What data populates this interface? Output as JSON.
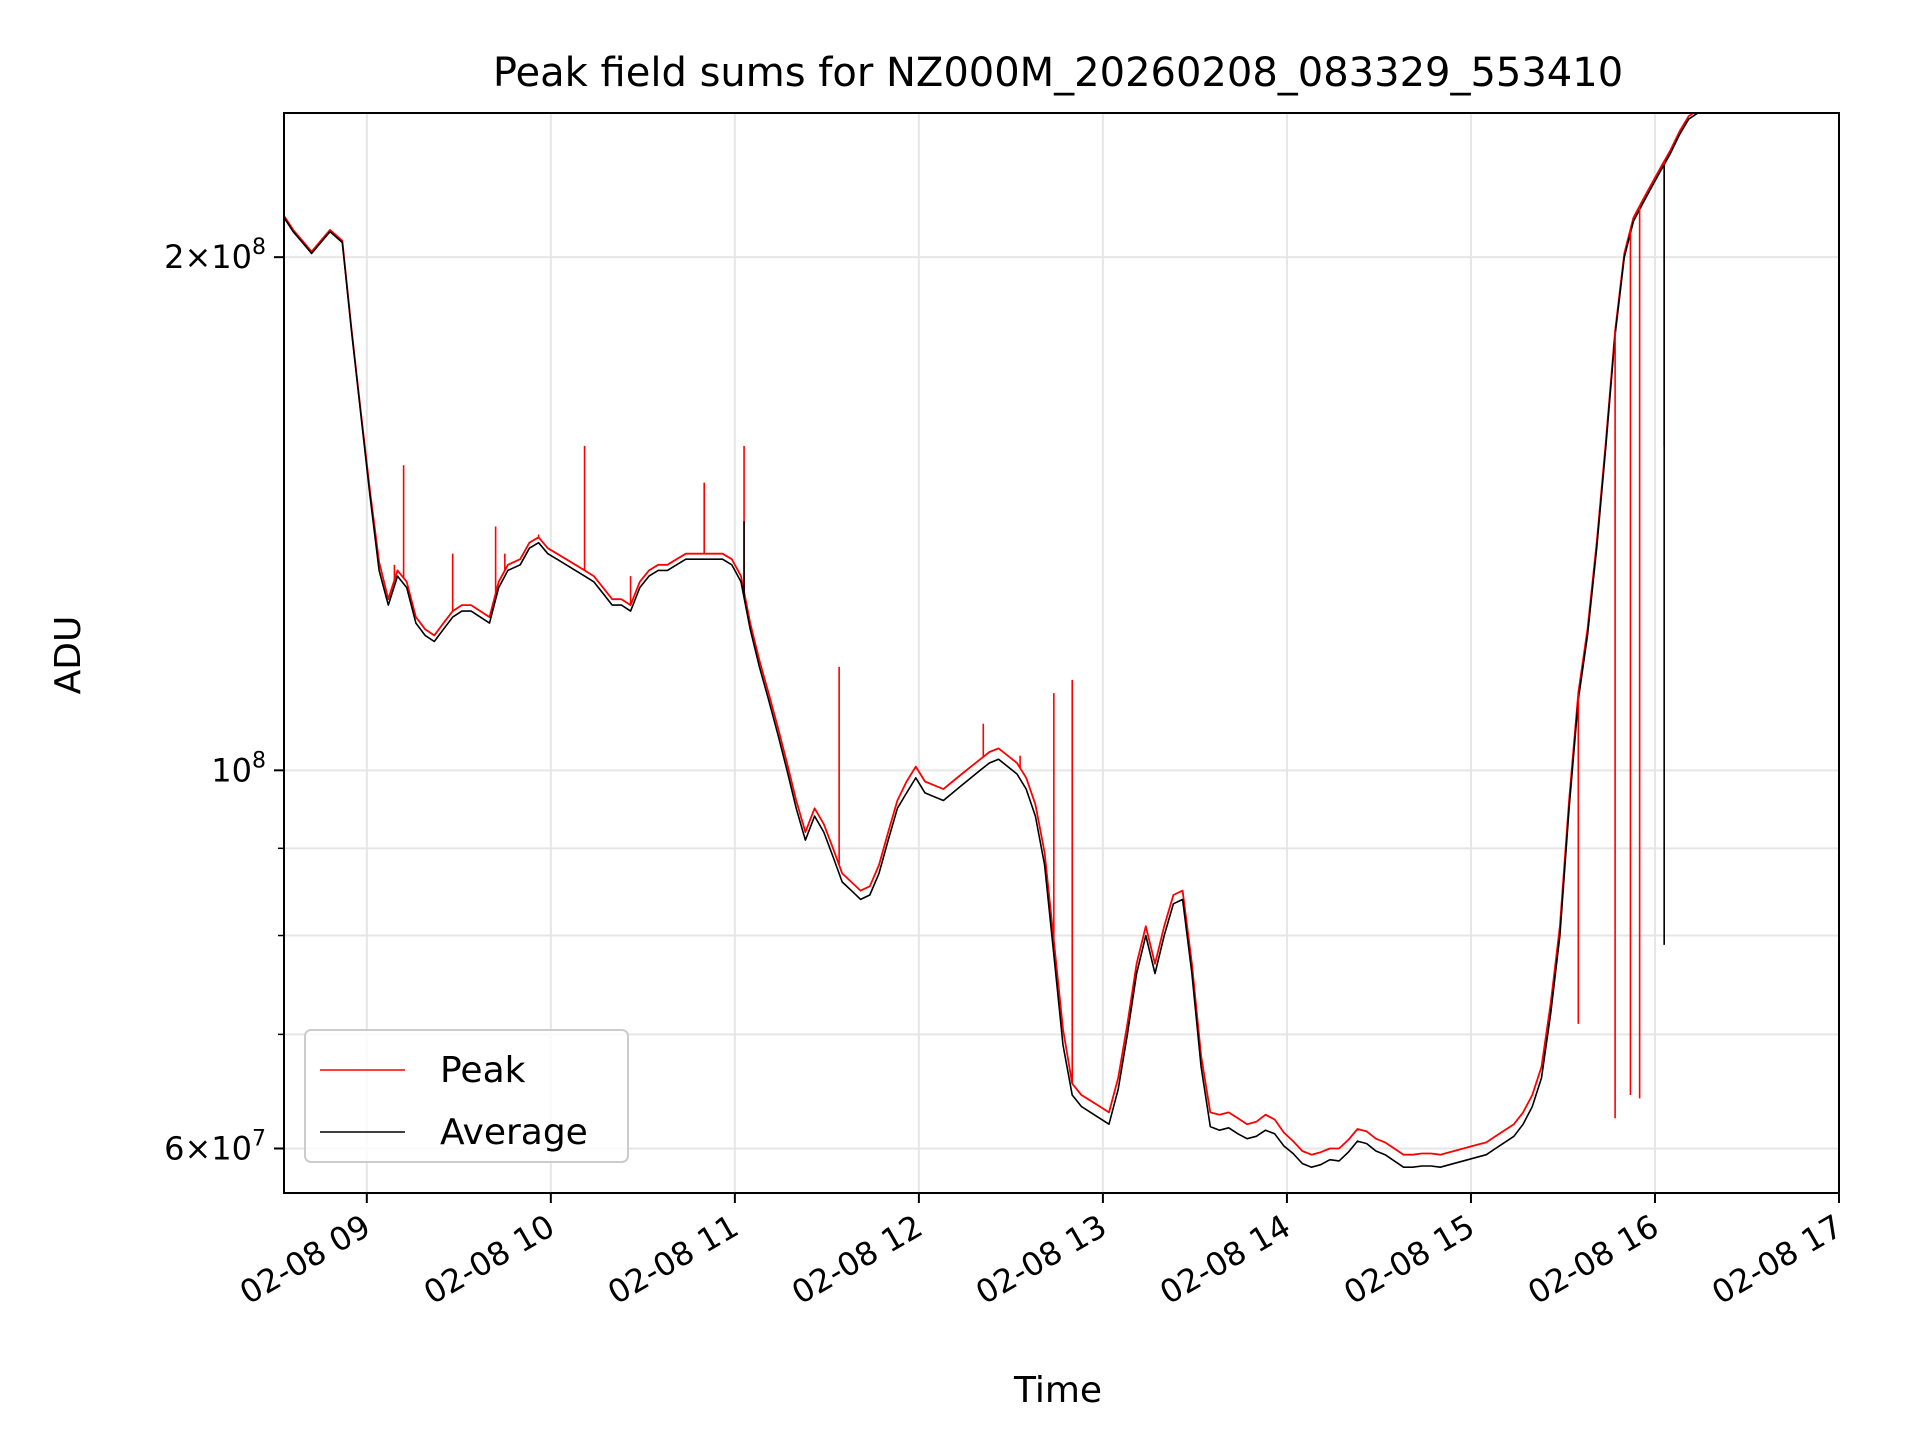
{
  "chart_data": {
    "type": "line",
    "title": "Peak field sums for NZ000M_20260208_083329_553410",
    "xlabel": "Time",
    "ylabel": "ADU",
    "y_scale": "log",
    "xlim": [
      "2026-02-08 08:33",
      "2026-02-08 17:00"
    ],
    "ylim": [
      56500000,
      243000000
    ],
    "x_ticks": [
      "02-08 09",
      "02-08 10",
      "02-08 11",
      "02-08 12",
      "02-08 13",
      "02-08 14",
      "02-08 15",
      "02-08 16",
      "02-08 17"
    ],
    "y_ticks": [
      {
        "value": 200000000,
        "mant": "2",
        "base": "10",
        "exp": "8"
      },
      {
        "value": 100000000,
        "mant": "",
        "base": "10",
        "exp": "8"
      },
      {
        "value": 60000000,
        "mant": "6",
        "base": "10",
        "exp": "7"
      }
    ],
    "y_minor_ticks": [
      70000000,
      80000000,
      90000000
    ],
    "grid": true,
    "legend_position": "lower-left",
    "series": [
      {
        "name": "Peak",
        "color": "#ff0000"
      },
      {
        "name": "Average",
        "color": "#000000"
      }
    ],
    "x": [
      "08:33",
      "08:36",
      "08:39",
      "08:42",
      "08:45",
      "08:48",
      "08:52",
      "08:55",
      "08:58",
      "09:01",
      "09:04",
      "09:07",
      "09:10",
      "09:13",
      "09:16",
      "09:19",
      "09:22",
      "09:25",
      "09:28",
      "09:31",
      "09:34",
      "09:37",
      "09:40",
      "09:43",
      "09:46",
      "09:50",
      "09:53",
      "09:56",
      "09:59",
      "10:02",
      "10:05",
      "10:08",
      "10:11",
      "10:14",
      "10:17",
      "10:20",
      "10:23",
      "10:26",
      "10:29",
      "10:32",
      "10:35",
      "10:38",
      "10:41",
      "10:44",
      "10:47",
      "10:50",
      "10:53",
      "10:56",
      "10:59",
      "11:02",
      "11:05",
      "11:08",
      "11:11",
      "11:14",
      "11:17",
      "11:20",
      "11:23",
      "11:26",
      "11:29",
      "11:32",
      "11:35",
      "11:38",
      "11:41",
      "11:44",
      "11:47",
      "11:50",
      "11:53",
      "11:56",
      "11:59",
      "12:02",
      "12:05",
      "12:08",
      "12:11",
      "12:14",
      "12:17",
      "12:20",
      "12:23",
      "12:26",
      "12:29",
      "12:32",
      "12:35",
      "12:38",
      "12:41",
      "12:44",
      "12:47",
      "12:50",
      "12:53",
      "12:56",
      "12:59",
      "13:02",
      "13:05",
      "13:08",
      "13:11",
      "13:14",
      "13:17",
      "13:20",
      "13:23",
      "13:26",
      "13:29",
      "13:32",
      "13:35",
      "13:38",
      "13:41",
      "13:44",
      "13:47",
      "13:50",
      "13:53",
      "13:56",
      "13:59",
      "14:02",
      "14:05",
      "14:08",
      "14:11",
      "14:14",
      "14:17",
      "14:20",
      "14:23",
      "14:26",
      "14:29",
      "14:32",
      "14:35",
      "14:38",
      "14:41",
      "14:44",
      "14:47",
      "14:50",
      "14:53",
      "14:56",
      "14:59",
      "15:02",
      "15:05",
      "15:08",
      "15:11",
      "15:14",
      "15:17",
      "15:20",
      "15:23",
      "15:26",
      "15:29",
      "15:32",
      "15:35",
      "15:38",
      "15:41",
      "15:44",
      "15:47",
      "15:50",
      "15:53",
      "15:56",
      "15:59",
      "16:02",
      "16:05",
      "16:08",
      "16:11",
      "16:14",
      "16:17",
      "16:20",
      "16:23",
      "16:26",
      "16:29",
      "16:32",
      "16:35",
      "16:38",
      "16:41",
      "16:44",
      "16:47",
      "16:50",
      "16:53",
      "16:56",
      "16:59",
      "17:00"
    ],
    "average": [
      211000000,
      207000000,
      204000000,
      201000000,
      204000000,
      207000000,
      204000000,
      181000000,
      162000000,
      145000000,
      131000000,
      125000000,
      130000000,
      128000000,
      122000000,
      120000000,
      119000000,
      121000000,
      123000000,
      124000000,
      124000000,
      123000000,
      122000000,
      128000000,
      131000000,
      132000000,
      135000000,
      136000000,
      134000000,
      133000000,
      132000000,
      131000000,
      130000000,
      129000000,
      127000000,
      125000000,
      125000000,
      124000000,
      128000000,
      130000000,
      131000000,
      131000000,
      132000000,
      133000000,
      133000000,
      133000000,
      133000000,
      133000000,
      132000000,
      129000000,
      121000000,
      115000000,
      110000000,
      105000000,
      100000000,
      95000000,
      91000000,
      94000000,
      92000000,
      89000000,
      86000000,
      85000000,
      84000000,
      84500000,
      87000000,
      91000000,
      95000000,
      97000000,
      99000000,
      97000000,
      96500000,
      96000000,
      97000000,
      98000000,
      99000000,
      100000000,
      101000000,
      101500000,
      100500000,
      99500000,
      97500000,
      94000000,
      88000000,
      78000000,
      69000000,
      64500000,
      63500000,
      63000000,
      62500000,
      62000000,
      65000000,
      70000000,
      76000000,
      80000000,
      76000000,
      80000000,
      83500000,
      84000000,
      76000000,
      67000000,
      61800000,
      61500000,
      61700000,
      61200000,
      60800000,
      61000000,
      61500000,
      61200000,
      60200000,
      59600000,
      58800000,
      58500000,
      58700000,
      59100000,
      59000000,
      59700000,
      60600000,
      60400000,
      59800000,
      59500000,
      59000000,
      58500000,
      58500000,
      58600000,
      58600000,
      58500000,
      58700000,
      58900000,
      59100000,
      59300000,
      59500000,
      60000000,
      60500000,
      61000000,
      62000000,
      63500000,
      66000000,
      72000000,
      80000000,
      95000000,
      110000000,
      120000000,
      135000000,
      155000000,
      180000000,
      200000000,
      210000000,
      215000000,
      220000000,
      225000000,
      230000000,
      236000000,
      241000000,
      243000000
    ],
    "peak": [
      211500000,
      207500000,
      204500000,
      201500000,
      204500000,
      207500000,
      204500000,
      181500000,
      162500000,
      146000000,
      132500000,
      126000000,
      131000000,
      129000000,
      123000000,
      121000000,
      120000000,
      122000000,
      124000000,
      125000000,
      125000000,
      124000000,
      123000000,
      129000000,
      132000000,
      133000000,
      136000000,
      137000000,
      135000000,
      134000000,
      133000000,
      132000000,
      131000000,
      130000000,
      128000000,
      126000000,
      126000000,
      125000000,
      129000000,
      131000000,
      132000000,
      132000000,
      133000000,
      134000000,
      134000000,
      134000000,
      134000000,
      134000000,
      133000000,
      130000000,
      122000000,
      116000000,
      111000000,
      106000000,
      101000000,
      96000000,
      92000000,
      95000000,
      93000000,
      90000000,
      87000000,
      86000000,
      85000000,
      85500000,
      88000000,
      92000000,
      96000000,
      98500000,
      100500000,
      98500000,
      98000000,
      97500000,
      98500000,
      99500000,
      100500000,
      101500000,
      102500000,
      103000000,
      102000000,
      101000000,
      99000000,
      95500000,
      89500000,
      79500000,
      70500000,
      65500000,
      64500000,
      64000000,
      63500000,
      63000000,
      66000000,
      71000000,
      77000000,
      81000000,
      77000000,
      81000000,
      84500000,
      85000000,
      77000000,
      68000000,
      63000000,
      62800000,
      63000000,
      62500000,
      62000000,
      62200000,
      62800000,
      62400000,
      61300000,
      60600000,
      59800000,
      59500000,
      59700000,
      60000000,
      60000000,
      60700000,
      61600000,
      61400000,
      60800000,
      60500000,
      60000000,
      59500000,
      59500000,
      59600000,
      59600000,
      59500000,
      59700000,
      59900000,
      60100000,
      60300000,
      60500000,
      61000000,
      61500000,
      62000000,
      63000000,
      64500000,
      67000000,
      73000000,
      81000000,
      96000000,
      111000000,
      121000000,
      136000000,
      156000000,
      181000000,
      201000000,
      211000000,
      216000000,
      221000000,
      226000000,
      231000000,
      237000000,
      242000000,
      244000000
    ],
    "peak_spikes": [
      {
        "x": "09:09",
        "y": 132000000
      },
      {
        "x": "09:12",
        "y": 151000000
      },
      {
        "x": "09:28",
        "y": 134000000
      },
      {
        "x": "09:42",
        "y": 139000000
      },
      {
        "x": "09:45",
        "y": 134000000
      },
      {
        "x": "09:56",
        "y": 137500000
      },
      {
        "x": "10:11",
        "y": 155000000
      },
      {
        "x": "10:26",
        "y": 130000000
      },
      {
        "x": "10:50",
        "y": 147500000
      },
      {
        "x": "11:03",
        "y": 155000000
      },
      {
        "x": "11:34",
        "y": 115000000
      },
      {
        "x": "12:21",
        "y": 106500000
      },
      {
        "x": "12:33",
        "y": 102000000
      },
      {
        "x": "12:44",
        "y": 111000000
      },
      {
        "x": "12:50",
        "y": 113000000
      },
      {
        "x": "15:35",
        "y": 71000000
      },
      {
        "x": "15:47",
        "y": 62500000
      },
      {
        "x": "15:52",
        "y": 64500000
      },
      {
        "x": "15:55",
        "y": 64200000
      },
      {
        "x": "16:03",
        "y": 155000000
      }
    ],
    "average_spikes": [
      {
        "x": "11:03",
        "y": 140000000
      },
      {
        "x": "16:03",
        "y": 79000000
      }
    ]
  }
}
